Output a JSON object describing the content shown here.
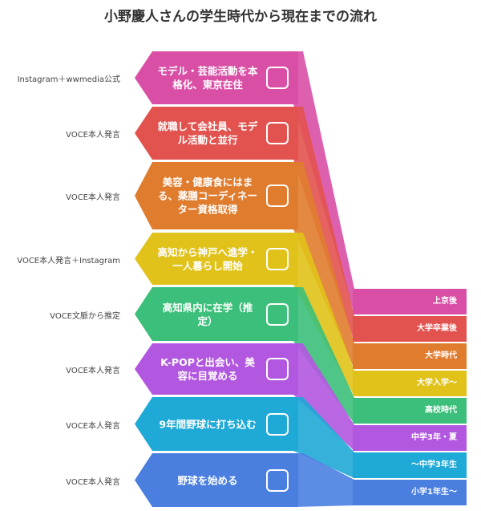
{
  "title": "小野慶人さんの学生時代から現在までの流れ",
  "items": [
    {
      "source": "Instagram＋wwmedia公式",
      "text": "モデル・芸能活動を本格化、東京在住",
      "period": "上京後"
    },
    {
      "source": "VOCE本人発言",
      "text": "就職して会社員、モデル活動と並行",
      "period": "大学卒業後"
    },
    {
      "source": "VOCE本人発言",
      "text": "美容・健康食にはまる、薬膳コーディネーター資格取得",
      "period": "大学時代"
    },
    {
      "source": "VOCE本人発言＋Instagram",
      "text": "高知から神戸へ進学・一人暮らし開始",
      "period": "大学入学〜"
    },
    {
      "source": "VOCE文脈から推定",
      "text": "高知県内に在学（推定）",
      "period": "高校時代"
    },
    {
      "source": "VOCE本人発言",
      "text": "K-POPと出会い、美容に目覚める",
      "period": "中学3年・夏"
    },
    {
      "source": "VOCE本人発言",
      "text": "9年間野球に打ち込む",
      "period": "〜中学3年生"
    },
    {
      "source": "VOCE本人発言",
      "text": "野球を始める",
      "period": "小学1年生〜"
    }
  ]
}
